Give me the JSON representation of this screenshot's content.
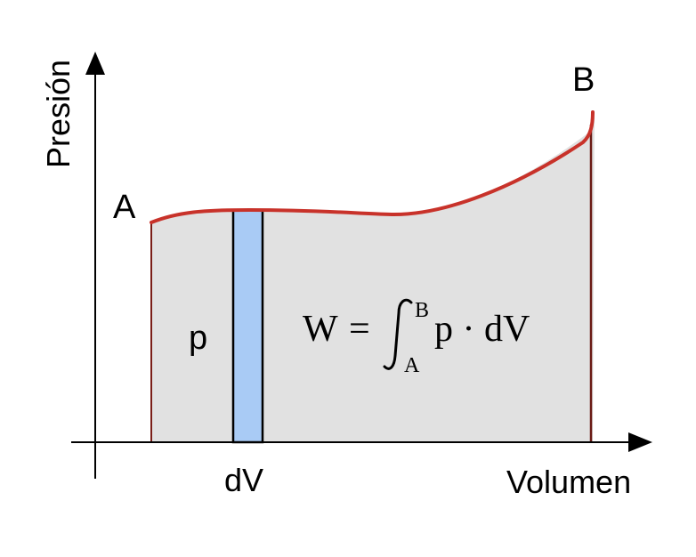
{
  "diagram": {
    "axes": {
      "y_label": "Presión",
      "x_label": "Volumen"
    },
    "points": {
      "start_label": "A",
      "end_label": "B"
    },
    "strip": {
      "height_label": "p",
      "width_label": "dV"
    },
    "formula": {
      "lhs": "W",
      "equals": "=",
      "upper_limit": "B",
      "lower_limit": "A",
      "integrand": "p · dV"
    },
    "colors": {
      "curve": "#c8322a",
      "area_fill": "#e1e1e1",
      "strip_fill": "#a9cbf5",
      "axis": "#000000"
    }
  }
}
